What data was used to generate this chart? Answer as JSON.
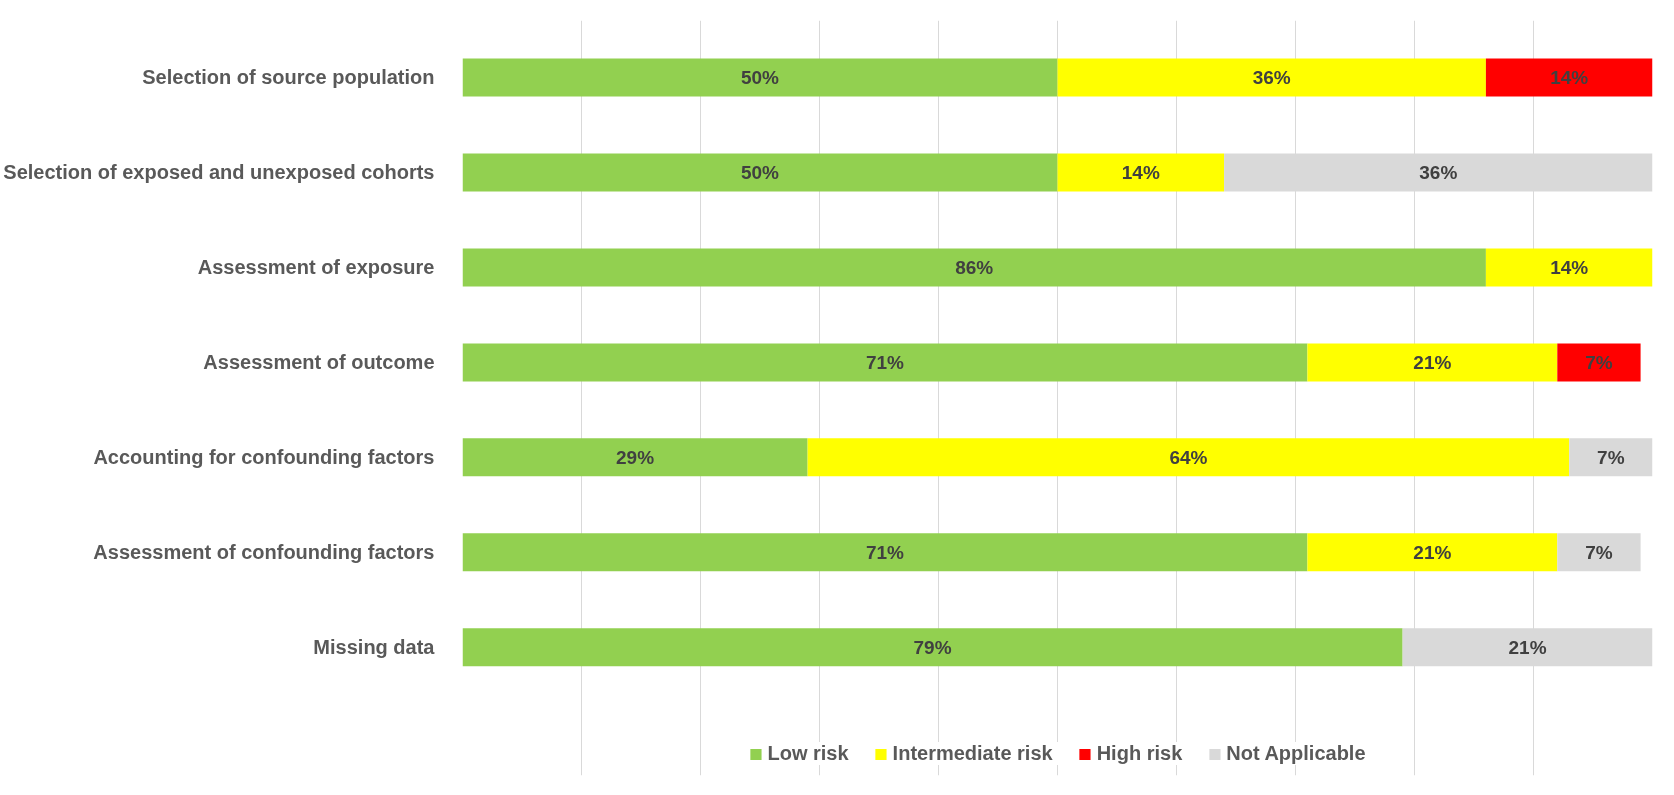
{
  "chart_data": {
    "type": "bar",
    "orientation": "horizontal",
    "stacked": true,
    "categories": [
      "Selection of source population",
      "Selection of exposed and unexposed cohorts",
      "Assessment of exposure",
      "Assessment of outcome",
      "Accounting for confounding factors",
      "Assessment of confounding factors",
      "Missing data"
    ],
    "series": [
      {
        "name": "Low risk",
        "color": "#92d050",
        "values": [
          50,
          50,
          86,
          71,
          29,
          71,
          79
        ],
        "value_labels": [
          "50%",
          "50%",
          "86%",
          "71%",
          "29%",
          "71%",
          "79%"
        ]
      },
      {
        "name": "Intermediate risk",
        "color": "#ffff00",
        "values": [
          36,
          14,
          14,
          21,
          64,
          21,
          null
        ],
        "value_labels": [
          "36%",
          "14%",
          "14%",
          "21%",
          "64%",
          "21%",
          null
        ]
      },
      {
        "name": "High risk",
        "color": "#ff0000",
        "values": [
          14,
          null,
          null,
          7,
          null,
          null,
          null
        ],
        "value_labels": [
          "14%",
          null,
          null,
          "7%",
          null,
          null,
          null
        ]
      },
      {
        "name": "Not Applicable",
        "color": "#d9d9d9",
        "values": [
          null,
          36,
          null,
          null,
          7,
          7,
          21
        ],
        "value_labels": [
          null,
          "36%",
          null,
          null,
          "7%",
          "7%",
          "21%"
        ]
      }
    ],
    "xlim": [
      0,
      100
    ],
    "tick_labels": "y",
    "grid": "x",
    "legend": "bottom"
  }
}
